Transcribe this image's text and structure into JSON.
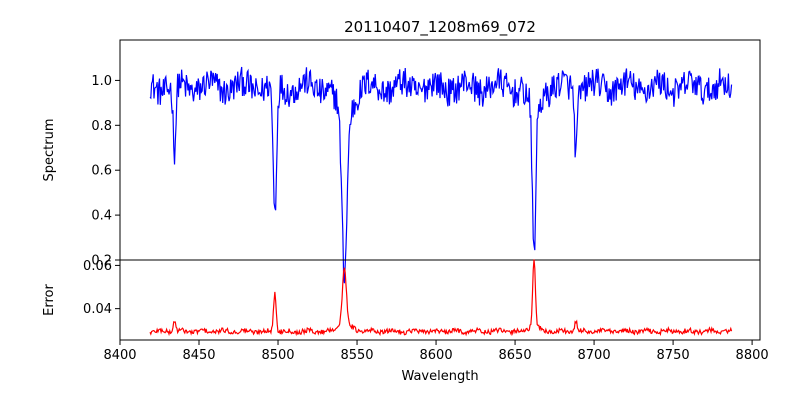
{
  "chart_data": {
    "type": "line",
    "title": "20110407_1208m69_072",
    "xlabel": "Wavelength",
    "x_ticks": [
      8400,
      8450,
      8500,
      8550,
      8600,
      8650,
      8700,
      8750,
      8800
    ],
    "xlim": [
      8400,
      8805
    ],
    "grid": false,
    "panels": [
      {
        "name": "spectrum",
        "ylabel": "Spectrum",
        "ylim": [
          0.2,
          1.18
        ],
        "y_ticks": [
          0.2,
          0.4,
          0.6,
          0.8,
          1.0
        ],
        "y_tick_labels": [
          "0.2",
          "0.4",
          "0.6",
          "0.8",
          "1.0"
        ],
        "color": "#0000ff",
        "baseline": 0.97,
        "x_range": [
          8419,
          8787
        ],
        "features": [
          {
            "center": 8434.5,
            "min": 0.67
          },
          {
            "center": 8498.0,
            "min": 0.39
          },
          {
            "center": 8542.0,
            "min": 0.25
          },
          {
            "center": 8662.0,
            "min": 0.32
          },
          {
            "center": 8688.5,
            "min": 0.7
          }
        ]
      },
      {
        "name": "error",
        "ylabel": "Error",
        "ylim": [
          0.0255,
          0.0625
        ],
        "y_ticks": [
          0.04,
          0.06
        ],
        "y_tick_labels": [
          "0.04",
          "0.06"
        ],
        "color": "#ff0000",
        "baseline": 0.0295,
        "x_range": [
          8419,
          8787
        ],
        "features": [
          {
            "center": 8434.5,
            "max": 0.0345
          },
          {
            "center": 8498.0,
            "max": 0.048
          },
          {
            "center": 8542.0,
            "max": 0.0555
          },
          {
            "center": 8662.0,
            "max": 0.06
          },
          {
            "center": 8688.5,
            "max": 0.034
          }
        ]
      }
    ]
  }
}
